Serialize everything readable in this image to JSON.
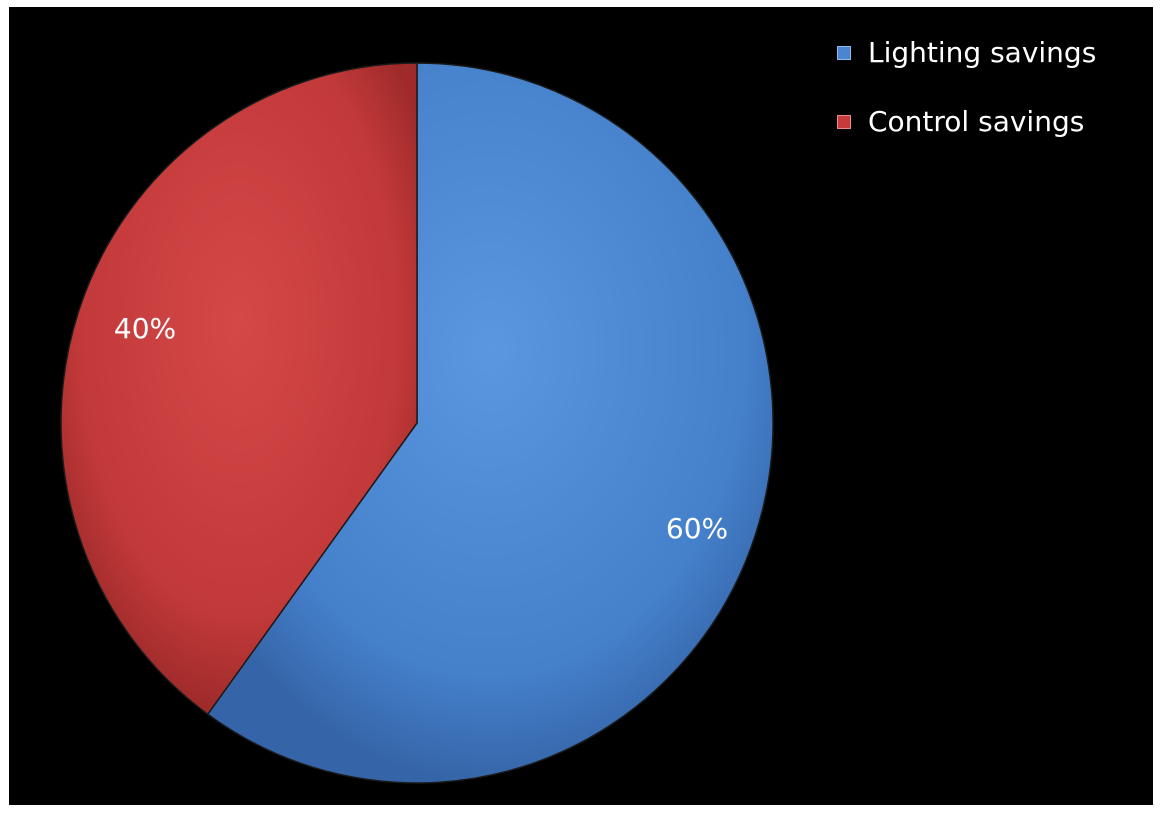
{
  "chart_data": {
    "type": "pie",
    "series": [
      {
        "slices": [
          {
            "label": "Lighting savings",
            "value": 60,
            "data_label": "60%",
            "color": "#4a86cf"
          },
          {
            "label": "Control savings",
            "value": 40,
            "data_label": "40%",
            "color": "#c73a3a"
          }
        ]
      }
    ],
    "start_angle_deg": 0,
    "direction": "clockwise",
    "legend_position": "top-right",
    "background": "#000000"
  }
}
